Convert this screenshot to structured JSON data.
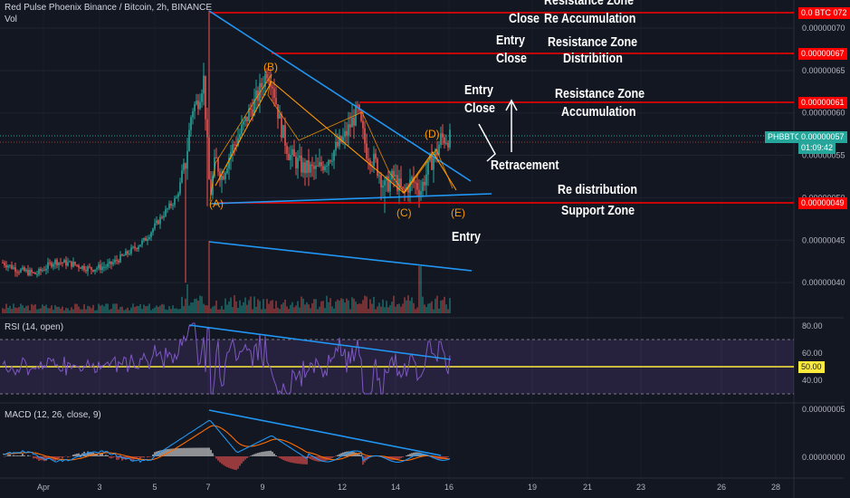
{
  "chart_data": {
    "type": "candlestick",
    "header": {
      "title": "Red Pulse Phoenix Binance / Bitcoin, 2h, BINANCE",
      "volume_label": "Vol"
    },
    "symbol_tag": "PHBBTC",
    "last_price": "0.00000057",
    "countdown": "01:09:42",
    "top_tag": "0.0 BTC 072",
    "price_axis": {
      "ticks": [
        "0.00000070",
        "0.00000065",
        "0.00000060",
        "0.00000055",
        "0.00000050",
        "0.00000045",
        "0.00000040"
      ],
      "values": [
        70,
        65,
        60,
        55,
        50,
        45,
        40
      ],
      "unit": "1e-8 BTC"
    },
    "x_axis": {
      "labels": [
        "Apr",
        "3",
        "5",
        "7",
        "9",
        "12",
        "14",
        "16",
        "19",
        "21",
        "23",
        "26",
        "28"
      ]
    },
    "resistance_levels": [
      {
        "value": "0.00000072",
        "label_lines": [
          "Resistance Zone",
          "Re Accumulation"
        ],
        "side": "Close"
      },
      {
        "value": "0.00000067",
        "label_lines": [
          "Resistance Zone",
          "Distribition"
        ],
        "side": "Entry Close"
      },
      {
        "value": "0.00000061",
        "label_lines": [
          "Resistance Zone",
          "Accumulation"
        ],
        "side": "Entry Close"
      },
      {
        "value": "0.00000049",
        "label_lines": [
          "Re distribution",
          "Support Zone"
        ],
        "side": "Entry"
      }
    ],
    "annotations": {
      "close1": "Close",
      "entry2": "Entry",
      "close2": "Close",
      "entry3": "Entry",
      "close3": "Close",
      "retracement": "Retracement",
      "entry4": "Entry",
      "res1_line1": "Resistance Zone",
      "res1_line2": "Re Accumulation",
      "res2_line1": "Resistance Zone",
      "res2_line2": "Distribition",
      "res3_line1": "Resistance Zone",
      "res3_line2": "Accumulation",
      "sup_line1": "Re distribution",
      "sup_line2": "Support Zone"
    },
    "waves": [
      "(A)",
      "(B)",
      "(C)",
      "(D)",
      "(E)"
    ],
    "rsi": {
      "title": "RSI (14, open)",
      "ticks": [
        "80.00",
        "60.00",
        "40.00"
      ],
      "current": "50.00",
      "band": [
        30,
        70
      ]
    },
    "macd": {
      "title": "MACD (12, 26, close, 9)",
      "ticks": [
        "0.00000005",
        "0.00000000"
      ]
    },
    "colors": {
      "background": "#131722",
      "up": "#26a69a",
      "down": "#ef5350",
      "trendline": "#2196f3",
      "level": "#ff0000",
      "wave": "#ff9800",
      "rsi_line": "#7e57c2",
      "rsi_mid": "#ffeb3b",
      "macd_line": "#2196f3",
      "signal_line": "#ff6d00"
    }
  }
}
